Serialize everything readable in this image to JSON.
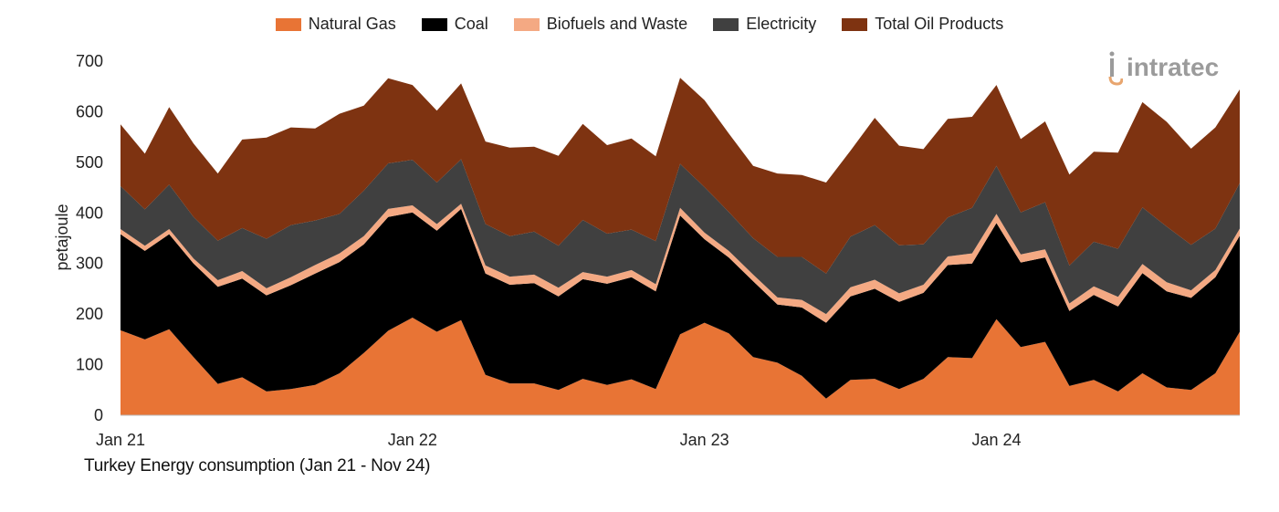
{
  "chart_data": {
    "type": "area",
    "stacked": true,
    "title": "Turkey Energy consumption (Jan 21 - Nov 24)",
    "xlabel": "",
    "ylabel": "petajoule",
    "ylim": [
      0,
      700
    ],
    "yticks": [
      0,
      100,
      200,
      300,
      400,
      500,
      600,
      700
    ],
    "xtick_labels": [
      {
        "label": "Jan 21",
        "index": 0
      },
      {
        "label": "Jan 22",
        "index": 12
      },
      {
        "label": "Jan 23",
        "index": 24
      },
      {
        "label": "Jan 24",
        "index": 36
      }
    ],
    "legend_position": "top-center",
    "periods": [
      "Jan 21",
      "Feb 21",
      "Mar 21",
      "Apr 21",
      "May 21",
      "Jun 21",
      "Jul 21",
      "Aug 21",
      "Sep 21",
      "Oct 21",
      "Nov 21",
      "Dec 21",
      "Jan 22",
      "Feb 22",
      "Mar 22",
      "Apr 22",
      "May 22",
      "Jun 22",
      "Jul 22",
      "Aug 22",
      "Sep 22",
      "Oct 22",
      "Nov 22",
      "Dec 22",
      "Jan 23",
      "Feb 23",
      "Mar 23",
      "Apr 23",
      "May 23",
      "Jun 23",
      "Jul 23",
      "Aug 23",
      "Sep 23",
      "Oct 23",
      "Nov 23",
      "Dec 23",
      "Jan 24",
      "Feb 24",
      "Mar 24",
      "Apr 24",
      "May 24",
      "Jun 24",
      "Jul 24",
      "Aug 24",
      "Sep 24",
      "Oct 24",
      "Nov 24"
    ],
    "series": [
      {
        "name": "Natural Gas",
        "color": "#E87435",
        "values": [
          168,
          150,
          170,
          115,
          62,
          75,
          47,
          52,
          60,
          83,
          123,
          167,
          193,
          165,
          188,
          80,
          63,
          63,
          50,
          72,
          60,
          71,
          52,
          160,
          183,
          162,
          115,
          104,
          78,
          33,
          70,
          72,
          52,
          72,
          115,
          113,
          190,
          135,
          145,
          58,
          70,
          47,
          83,
          55,
          50,
          83,
          165
        ]
      },
      {
        "name": "Coal",
        "color": "#000000",
        "values": [
          190,
          175,
          188,
          185,
          192,
          195,
          190,
          205,
          220,
          220,
          215,
          225,
          208,
          200,
          220,
          200,
          195,
          198,
          185,
          197,
          200,
          202,
          193,
          235,
          165,
          150,
          150,
          115,
          135,
          150,
          165,
          178,
          172,
          170,
          182,
          187,
          190,
          167,
          167,
          148,
          168,
          168,
          198,
          190,
          182,
          190,
          190
        ]
      },
      {
        "name": "Biofuels and Waste",
        "color": "#F4A983",
        "values": [
          10,
          10,
          10,
          10,
          13,
          15,
          14,
          16,
          17,
          17,
          16,
          16,
          14,
          13,
          10,
          16,
          16,
          17,
          17,
          14,
          14,
          14,
          14,
          15,
          13,
          13,
          13,
          14,
          15,
          17,
          18,
          18,
          17,
          16,
          17,
          20,
          18,
          16,
          16,
          15,
          17,
          19,
          18,
          18,
          15,
          14,
          14
        ]
      },
      {
        "name": "Electricity",
        "color": "#404040",
        "values": [
          85,
          72,
          88,
          82,
          78,
          85,
          98,
          103,
          88,
          78,
          90,
          90,
          90,
          82,
          88,
          82,
          80,
          85,
          83,
          103,
          85,
          80,
          85,
          87,
          90,
          77,
          72,
          80,
          85,
          80,
          100,
          108,
          95,
          80,
          77,
          90,
          95,
          83,
          93,
          75,
          88,
          95,
          112,
          110,
          90,
          82,
          90
        ]
      },
      {
        "name": "Total Oil Products",
        "color": "#7E3311",
        "values": [
          122,
          110,
          153,
          145,
          133,
          175,
          200,
          193,
          182,
          198,
          168,
          168,
          148,
          142,
          150,
          163,
          175,
          168,
          178,
          190,
          175,
          180,
          168,
          170,
          172,
          155,
          143,
          165,
          162,
          180,
          170,
          212,
          197,
          188,
          195,
          180,
          160,
          145,
          160,
          180,
          178,
          190,
          208,
          207,
          190,
          200,
          185
        ]
      }
    ]
  },
  "legend": {
    "items": [
      {
        "label": "Natural Gas",
        "color": "#E87435"
      },
      {
        "label": "Coal",
        "color": "#000000"
      },
      {
        "label": "Biofuels and Waste",
        "color": "#F4A983"
      },
      {
        "label": "Electricity",
        "color": "#404040"
      },
      {
        "label": "Total Oil Products",
        "color": "#7E3311"
      }
    ]
  },
  "caption": "Turkey Energy consumption (Jan 21 - Nov 24)",
  "logo": {
    "text": "intratec"
  }
}
